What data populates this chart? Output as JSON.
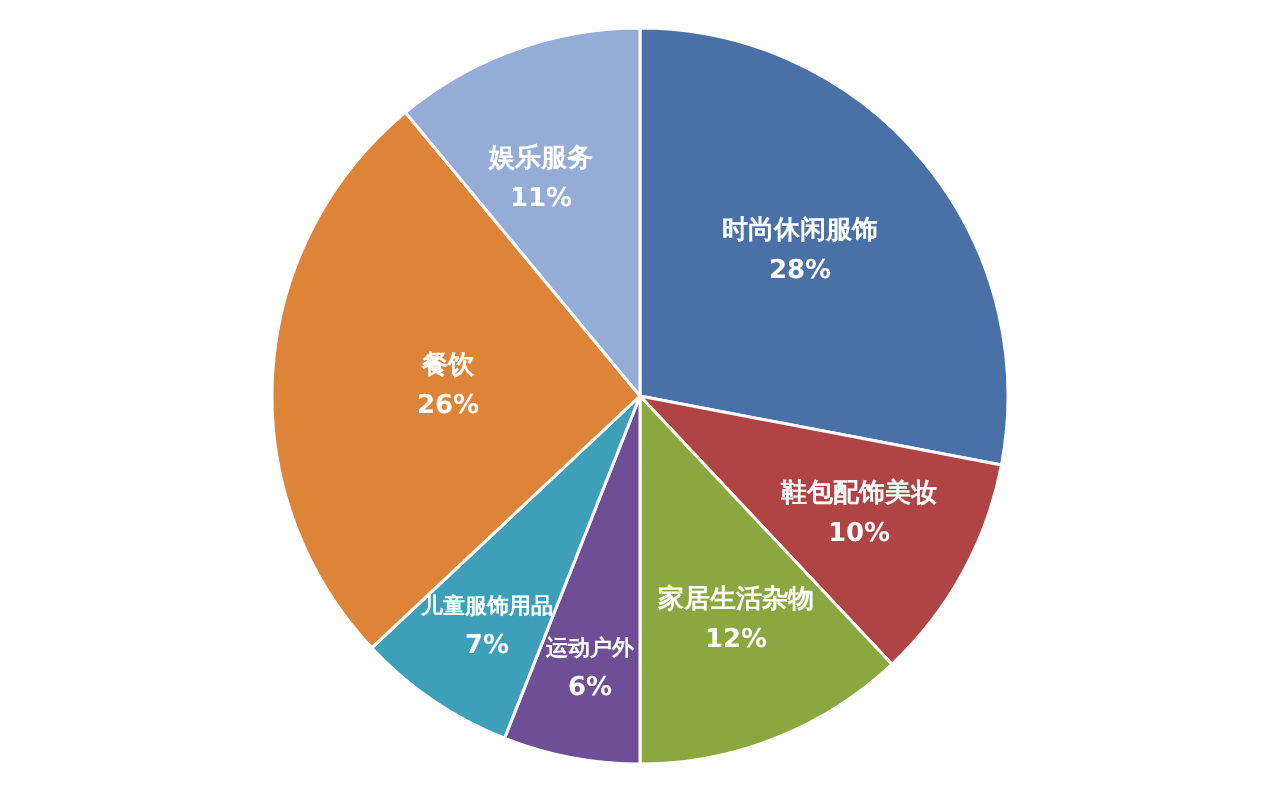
{
  "chart_data": {
    "type": "pie",
    "categories": [
      "时尚休闲服饰",
      "鞋包配饰美妆",
      "家居生活杂物",
      "运动户外",
      "儿童服饰用品",
      "餐饮",
      "娱乐服务"
    ],
    "values": [
      28,
      10,
      12,
      6,
      7,
      26,
      11
    ],
    "colors": [
      "#4a70a8",
      "#b04444",
      "#8aa83f",
      "#6e4f96",
      "#3d9fb8",
      "#dd8438",
      "#95acd6"
    ],
    "value_labels": [
      "28%",
      "10%",
      "12%",
      "6%",
      "7%",
      "26%",
      "11%"
    ],
    "legend": false
  }
}
